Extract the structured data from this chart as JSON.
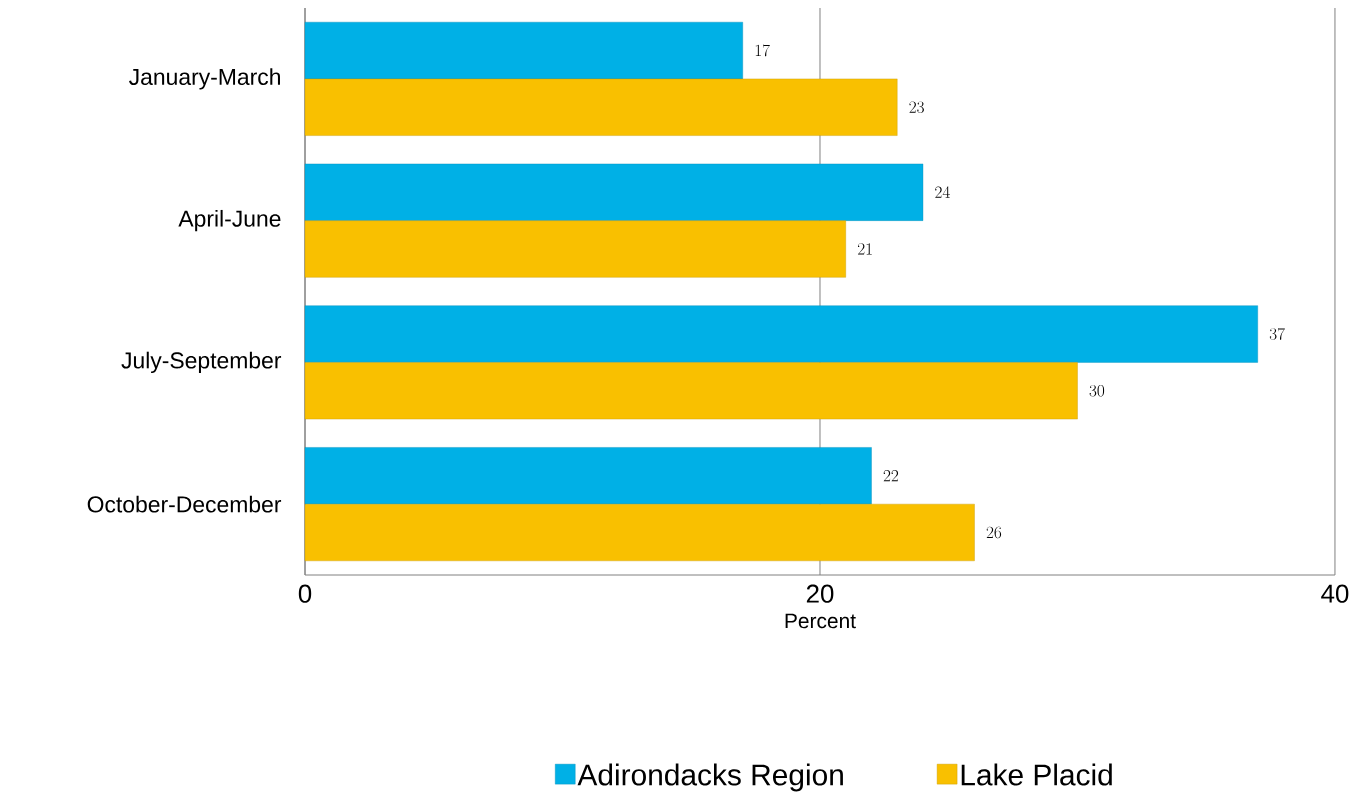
{
  "chart_data": {
    "type": "bar",
    "orientation": "horizontal",
    "xlabel": "Percent",
    "categories": [
      "January-March",
      "April-June",
      "July-September",
      "October-December"
    ],
    "series": [
      {
        "name": "Adirondacks Region",
        "color": "#00b0e6",
        "values": [
          17,
          24,
          37,
          22
        ]
      },
      {
        "name": "Lake Placid",
        "color": "#f9c000",
        "values": [
          23,
          21,
          30,
          26
        ]
      }
    ],
    "xlim": [
      0,
      40
    ],
    "xticks": [
      0,
      20,
      40
    ],
    "grid": "x",
    "data_labels": true,
    "legend": "bottom"
  }
}
